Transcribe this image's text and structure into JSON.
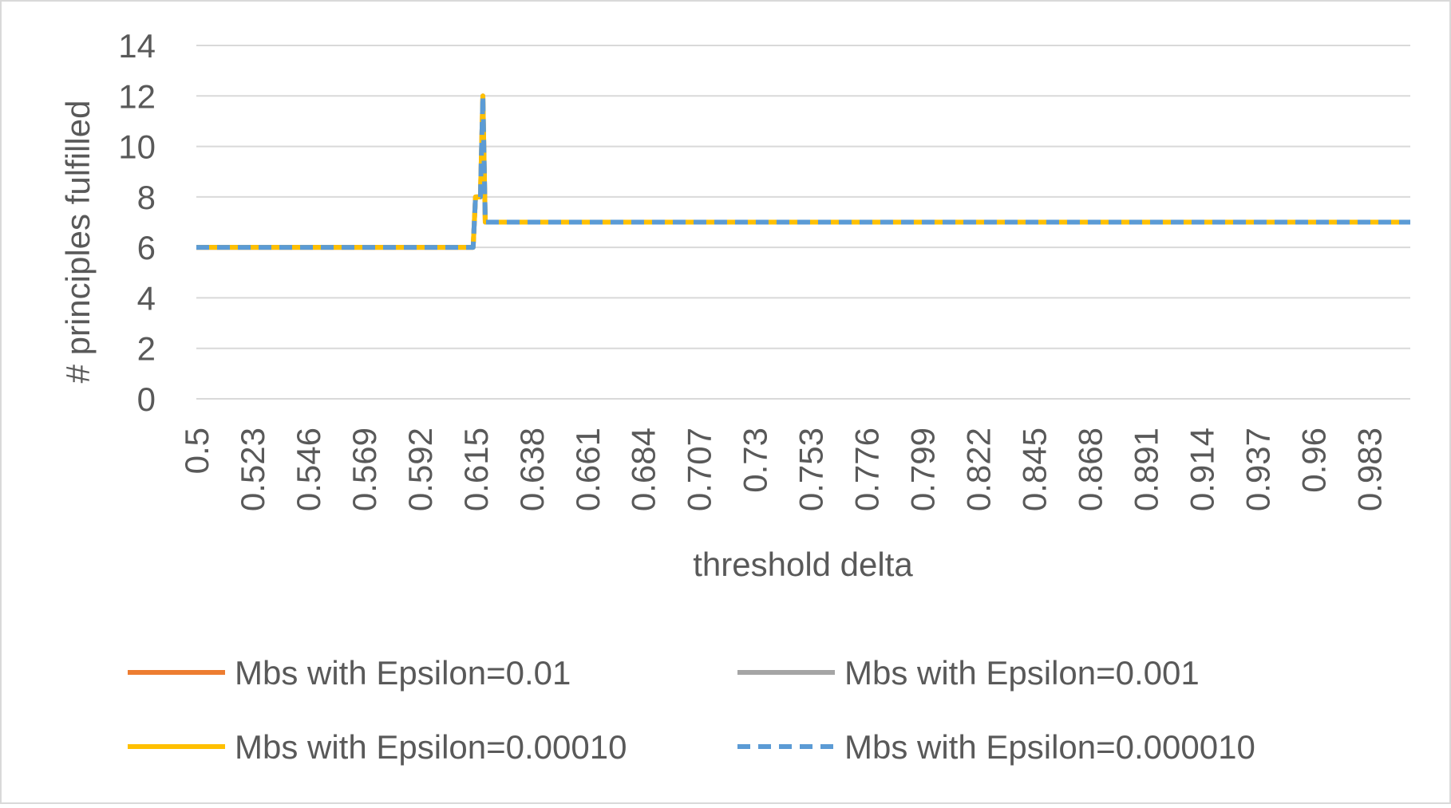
{
  "chart_data": {
    "type": "line",
    "title": "",
    "xlabel": "threshold delta",
    "ylabel": "# principles fulfilled",
    "ylim": [
      0,
      14
    ],
    "yticks": [
      "0",
      "2",
      "4",
      "6",
      "8",
      "10",
      "12",
      "14"
    ],
    "grid": true,
    "legend_position": "bottom",
    "x_tick_labels": [
      "0.5",
      "0.523",
      "0.546",
      "0.569",
      "0.592",
      "0.615",
      "0.638",
      "0.661",
      "0.684",
      "0.707",
      "0.73",
      "0.753",
      "0.776",
      "0.799",
      "0.822",
      "0.845",
      "0.868",
      "0.891",
      "0.914",
      "0.937",
      "0.96",
      "0.983"
    ],
    "x_start": 0.5,
    "x_end": 1.0,
    "series": [
      {
        "name": "Mbs with Epsilon=0.01",
        "color": "#ED7D31",
        "style": "solid",
        "points": [
          [
            0.5,
            6
          ],
          [
            0.614,
            6
          ],
          [
            0.615,
            8
          ],
          [
            0.617,
            8
          ],
          [
            0.618,
            12
          ],
          [
            0.619,
            7
          ],
          [
            1.0,
            7
          ]
        ]
      },
      {
        "name": "Mbs with Epsilon=0.001",
        "color": "#A5A5A5",
        "style": "solid",
        "points": [
          [
            0.5,
            6
          ],
          [
            0.614,
            6
          ],
          [
            0.615,
            8
          ],
          [
            0.617,
            8
          ],
          [
            0.618,
            12
          ],
          [
            0.619,
            7
          ],
          [
            1.0,
            7
          ]
        ]
      },
      {
        "name": "Mbs with Epsilon=0.00010",
        "color": "#FFC000",
        "style": "solid",
        "points": [
          [
            0.5,
            6
          ],
          [
            0.614,
            6
          ],
          [
            0.615,
            8
          ],
          [
            0.617,
            8
          ],
          [
            0.618,
            12
          ],
          [
            0.619,
            7
          ],
          [
            1.0,
            7
          ]
        ]
      },
      {
        "name": "Mbs with Epsilon=0.000010",
        "color": "#5B9BD5",
        "style": "dashed",
        "points": [
          [
            0.5,
            6
          ],
          [
            0.614,
            6
          ],
          [
            0.615,
            8
          ],
          [
            0.617,
            8
          ],
          [
            0.618,
            12
          ],
          [
            0.619,
            7
          ],
          [
            1.0,
            7
          ]
        ]
      }
    ]
  }
}
